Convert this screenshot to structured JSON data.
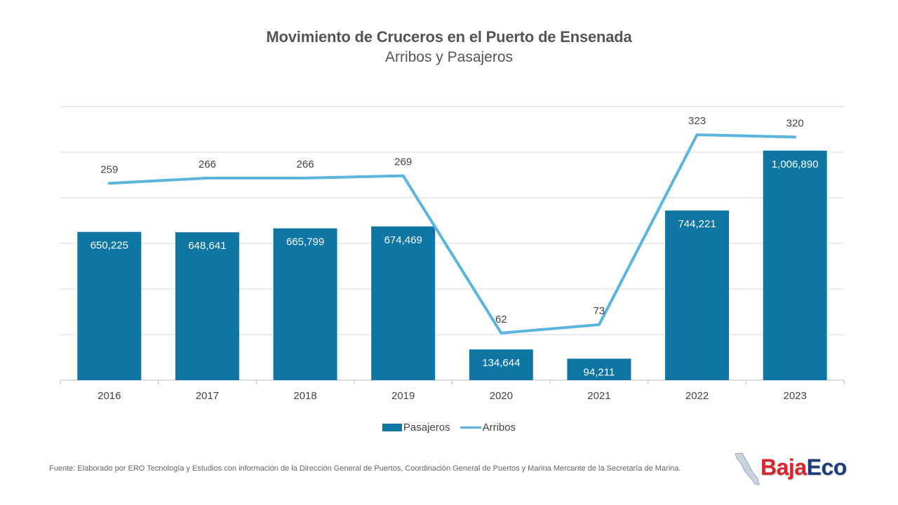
{
  "title": "Movimiento de Cruceros en el Puerto de Ensenada",
  "subtitle": "Arribos y Pasajeros",
  "chart_data": {
    "type": "bar",
    "categories": [
      "2016",
      "2017",
      "2018",
      "2019",
      "2020",
      "2021",
      "2022",
      "2023"
    ],
    "series": [
      {
        "name": "Pasajeros",
        "type": "bar",
        "values": [
          650225,
          648641,
          665799,
          674469,
          134644,
          94211,
          744221,
          1006890
        ],
        "labels": [
          "650,225",
          "648,641",
          "665,799",
          "674,469",
          "134,644",
          "94,211",
          "744,221",
          "1,006,890"
        ]
      },
      {
        "name": "Arribos",
        "type": "line",
        "values": [
          259,
          266,
          266,
          269,
          62,
          73,
          323,
          320
        ],
        "labels": [
          "259",
          "266",
          "266",
          "269",
          "62",
          "73",
          "323",
          "320"
        ]
      }
    ],
    "y_bar_range": [
      0,
      1200000
    ],
    "y_line_range": [
      0,
      360
    ],
    "gridlines": true,
    "legend": "bottom-center"
  },
  "colors": {
    "bar": "#0f76a3",
    "line": "#5ab4dc",
    "grid": "#d9d9d9",
    "axis_text": "#444444"
  },
  "source": "Fuente: Elaborado por ERO Tecnología y Estudios con información de la Dirección General de Puertos, Coordinación General de Puertos y Marina Mercante de la Secretaría de Marina.",
  "logo": {
    "part1": "Baja",
    "part2": "Eco",
    "icon": "baja-california-map-icon"
  }
}
